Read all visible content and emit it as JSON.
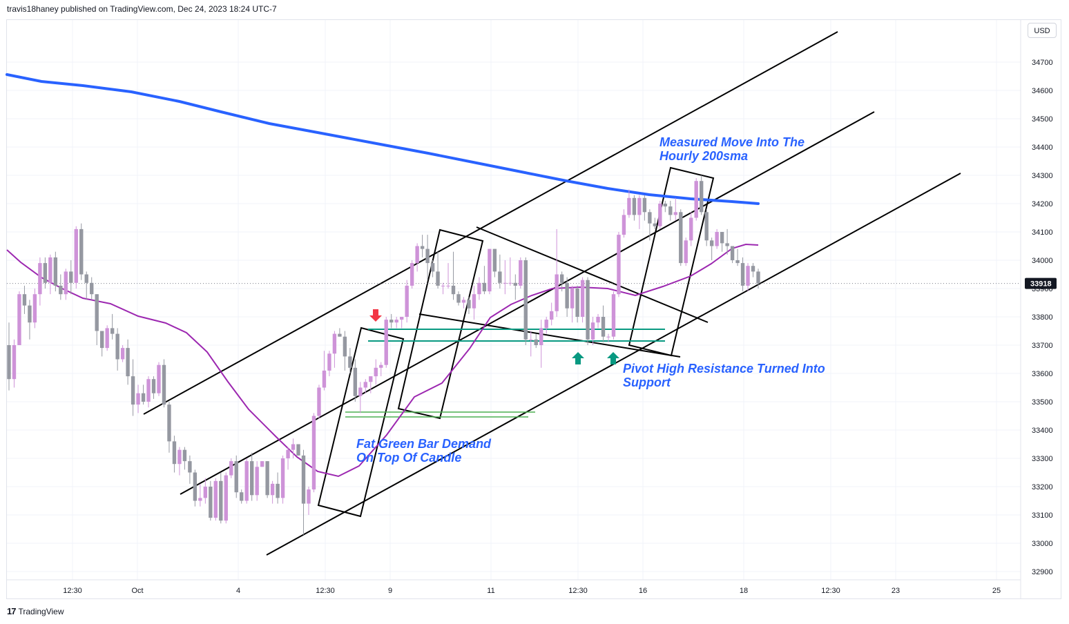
{
  "header": {
    "text": "travis18haney published on TradingView.com, Dec 24, 2023 18:24 UTC-7"
  },
  "currency_label": "USD",
  "footer": {
    "logo": "17",
    "brand": "TradingView"
  },
  "price_label": {
    "value": "33918",
    "color": "#131722"
  },
  "colors": {
    "bull": "#ce93d8",
    "bear": "#9598a1",
    "sma200": "#2962ff",
    "sma_fast": "#9c27b0",
    "channel": "#000000",
    "teal_level": "#089981",
    "green_level": "#4caf50",
    "arrow_down": "#f23645",
    "arrow_up": "#089981",
    "annotation": "#2962ff"
  },
  "chart_data": {
    "type": "candlestick",
    "y_ticks": [
      34700,
      34600,
      34500,
      34400,
      34300,
      34200,
      34100,
      34000,
      33900,
      33800,
      33700,
      33600,
      33500,
      33400,
      33300,
      33200,
      33100,
      33000,
      32900
    ],
    "ylim": [
      32860,
      34900
    ],
    "x_ticks": [
      "12:30",
      "Oct",
      "4",
      "12:30",
      "9",
      "11",
      "12:30",
      "16",
      "18",
      "12:30",
      "23",
      "25"
    ],
    "candles": [
      [
        33700,
        33780,
        33540,
        33580
      ],
      [
        33580,
        33720,
        33550,
        33700
      ],
      [
        33700,
        33890,
        33700,
        33880
      ],
      [
        33880,
        33910,
        33810,
        33840
      ],
      [
        33840,
        33860,
        33720,
        33780
      ],
      [
        33780,
        33900,
        33760,
        33880
      ],
      [
        33880,
        34010,
        33840,
        33990
      ],
      [
        33990,
        34010,
        33900,
        33920
      ],
      [
        33920,
        34020,
        33880,
        34010
      ],
      [
        34010,
        34030,
        33890,
        33910
      ],
      [
        33910,
        33950,
        33860,
        33880
      ],
      [
        33880,
        33970,
        33860,
        33960
      ],
      [
        33960,
        34000,
        33880,
        33920
      ],
      [
        33920,
        34120,
        33900,
        34110
      ],
      [
        34110,
        34130,
        33930,
        33950
      ],
      [
        33950,
        33960,
        33860,
        33920
      ],
      [
        33920,
        33940,
        33860,
        33880
      ],
      [
        33880,
        33880,
        33700,
        33750
      ],
      [
        33750,
        33750,
        33660,
        33690
      ],
      [
        33690,
        33770,
        33680,
        33760
      ],
      [
        33760,
        33810,
        33720,
        33740
      ],
      [
        33740,
        33760,
        33610,
        33650
      ],
      [
        33650,
        33700,
        33640,
        33690
      ],
      [
        33690,
        33720,
        33560,
        33590
      ],
      [
        33590,
        33650,
        33450,
        33490
      ],
      [
        33490,
        33560,
        33460,
        33530
      ],
      [
        33530,
        33560,
        33490,
        33500
      ],
      [
        33500,
        33590,
        33480,
        33580
      ],
      [
        33580,
        33590,
        33510,
        33530
      ],
      [
        33530,
        33640,
        33520,
        33630
      ],
      [
        33630,
        33650,
        33480,
        33490
      ],
      [
        33490,
        33500,
        33320,
        33360
      ],
      [
        33360,
        33380,
        33250,
        33280
      ],
      [
        33280,
        33340,
        33240,
        33330
      ],
      [
        33330,
        33340,
        33260,
        33290
      ],
      [
        33290,
        33310,
        33210,
        33250
      ],
      [
        33250,
        33260,
        33130,
        33150
      ],
      [
        33150,
        33210,
        33130,
        33160
      ],
      [
        33160,
        33230,
        33140,
        33200
      ],
      [
        33200,
        33220,
        33080,
        33090
      ],
      [
        33090,
        33230,
        33080,
        33220
      ],
      [
        33220,
        33250,
        33070,
        33080
      ],
      [
        33080,
        33250,
        33070,
        33240
      ],
      [
        33240,
        33300,
        33230,
        33290
      ],
      [
        33290,
        33310,
        33160,
        33180
      ],
      [
        33180,
        33190,
        33140,
        33150
      ],
      [
        33150,
        33300,
        33140,
        33290
      ],
      [
        33290,
        33320,
        33150,
        33170
      ],
      [
        33170,
        33290,
        33150,
        33270
      ],
      [
        33270,
        33290,
        33270,
        33290
      ],
      [
        33290,
        33290,
        33160,
        33170
      ],
      [
        33170,
        33220,
        33140,
        33210
      ],
      [
        33210,
        33250,
        33140,
        33160
      ],
      [
        33160,
        33310,
        33140,
        33300
      ],
      [
        33300,
        33340,
        33260,
        33330
      ],
      [
        33330,
        33370,
        33300,
        33350
      ],
      [
        33350,
        33350,
        33310,
        33310
      ],
      [
        33310,
        33330,
        33030,
        33140
      ],
      [
        33140,
        33200,
        33100,
        33190
      ],
      [
        33190,
        33460,
        33180,
        33450
      ],
      [
        33450,
        33560,
        33440,
        33550
      ],
      [
        33550,
        33680,
        33540,
        33610
      ],
      [
        33610,
        33680,
        33590,
        33670
      ],
      [
        33670,
        33750,
        33620,
        33740
      ],
      [
        33740,
        33760,
        33730,
        33730
      ],
      [
        33730,
        33750,
        33610,
        33660
      ],
      [
        33660,
        33690,
        33600,
        33620
      ],
      [
        33620,
        33650,
        33500,
        33520
      ],
      [
        33520,
        33570,
        33460,
        33550
      ],
      [
        33550,
        33580,
        33530,
        33570
      ],
      [
        33570,
        33590,
        33530,
        33590
      ],
      [
        33590,
        33650,
        33560,
        33620
      ],
      [
        33620,
        33640,
        33590,
        33630
      ],
      [
        33630,
        33800,
        33620,
        33790
      ],
      [
        33790,
        33810,
        33760,
        33780
      ],
      [
        33780,
        33800,
        33760,
        33790
      ],
      [
        33790,
        33800,
        33760,
        33800
      ],
      [
        33800,
        33930,
        33780,
        33910
      ],
      [
        33910,
        34000,
        33900,
        33990
      ],
      [
        33990,
        34060,
        33960,
        34050
      ],
      [
        34050,
        34090,
        34010,
        34040
      ],
      [
        34040,
        34090,
        33930,
        33990
      ],
      [
        33990,
        34000,
        33940,
        33960
      ],
      [
        33960,
        34030,
        33900,
        33910
      ],
      [
        33910,
        33920,
        33880,
        33910
      ],
      [
        33910,
        33990,
        33900,
        33910
      ],
      [
        33910,
        34030,
        33860,
        33880
      ],
      [
        33880,
        33890,
        33840,
        33850
      ],
      [
        33850,
        33870,
        33830,
        33860
      ],
      [
        33860,
        33870,
        33810,
        33830
      ],
      [
        33830,
        33910,
        33790,
        33880
      ],
      [
        33880,
        33940,
        33860,
        33920
      ],
      [
        33920,
        33980,
        33880,
        33890
      ],
      [
        33890,
        34040,
        33880,
        34040
      ],
      [
        34040,
        34040,
        33940,
        33960
      ],
      [
        33960,
        34020,
        33900,
        33920
      ],
      [
        33920,
        34000,
        33880,
        33920
      ],
      [
        33920,
        34010,
        33910,
        33920
      ],
      [
        33920,
        33950,
        33860,
        33910
      ],
      [
        33910,
        34010,
        33900,
        34000
      ],
      [
        34000,
        34010,
        33700,
        33720
      ],
      [
        33720,
        33750,
        33660,
        33720
      ],
      [
        33720,
        33740,
        33690,
        33700
      ],
      [
        33700,
        33790,
        33620,
        33760
      ],
      [
        33760,
        33800,
        33740,
        33790
      ],
      [
        33790,
        33850,
        33770,
        33820
      ],
      [
        33820,
        34110,
        33800,
        33950
      ],
      [
        33950,
        33960,
        33890,
        33920
      ],
      [
        33920,
        33940,
        33800,
        33830
      ],
      [
        33830,
        33910,
        33780,
        33900
      ],
      [
        33900,
        33910,
        33780,
        33800
      ],
      [
        33800,
        33940,
        33780,
        33930
      ],
      [
        33930,
        33940,
        33700,
        33720
      ],
      [
        33720,
        33800,
        33700,
        33780
      ],
      [
        33780,
        33810,
        33760,
        33800
      ],
      [
        33800,
        33840,
        33710,
        33730
      ],
      [
        33730,
        33740,
        33710,
        33730
      ],
      [
        33730,
        33890,
        33720,
        33880
      ],
      [
        33880,
        34100,
        33870,
        34090
      ],
      [
        34090,
        34180,
        34080,
        34160
      ],
      [
        34160,
        34250,
        34150,
        34220
      ],
      [
        34220,
        34230,
        34140,
        34160
      ],
      [
        34160,
        34230,
        34110,
        34220
      ],
      [
        34220,
        34230,
        34140,
        34170
      ],
      [
        34170,
        34180,
        34070,
        34130
      ],
      [
        34130,
        34150,
        34110,
        34120
      ],
      [
        34120,
        34210,
        34110,
        34200
      ],
      [
        34200,
        34210,
        34170,
        34190
      ],
      [
        34190,
        34210,
        34140,
        34160
      ],
      [
        34160,
        34220,
        34140,
        34170
      ],
      [
        34170,
        34180,
        33980,
        33990
      ],
      [
        33990,
        34080,
        33980,
        34070
      ],
      [
        34070,
        34170,
        34050,
        34150
      ],
      [
        34150,
        34290,
        34140,
        34280
      ],
      [
        34280,
        34300,
        34160,
        34170
      ],
      [
        34170,
        34180,
        34050,
        34070
      ],
      [
        34070,
        34080,
        34000,
        34050
      ],
      [
        34050,
        34110,
        34040,
        34100
      ],
      [
        34100,
        34100,
        34030,
        34060
      ],
      [
        34060,
        34110,
        34020,
        34050
      ],
      [
        34050,
        34050,
        33990,
        34000
      ],
      [
        34000,
        34040,
        33980,
        33990
      ],
      [
        33990,
        34010,
        33890,
        33910
      ],
      [
        33910,
        33990,
        33890,
        33980
      ],
      [
        33980,
        33990,
        33940,
        33960
      ],
      [
        33960,
        33970,
        33900,
        33918
      ]
    ],
    "series": [
      {
        "name": "200sma",
        "points": [
          [
            10,
            108
          ],
          [
            60,
            118
          ],
          [
            120,
            124
          ],
          [
            190,
            133
          ],
          [
            260,
            147
          ],
          [
            320,
            162
          ],
          [
            390,
            179
          ],
          [
            460,
            192
          ],
          [
            540,
            207
          ],
          [
            620,
            222
          ],
          [
            700,
            238
          ],
          [
            760,
            250
          ],
          [
            820,
            262
          ],
          [
            880,
            273
          ],
          [
            940,
            282
          ],
          [
            1000,
            288
          ],
          [
            1060,
            292
          ],
          [
            1098,
            295
          ]
        ]
      },
      {
        "name": "fast_ma",
        "points": [
          [
            10,
            362
          ],
          [
            30,
            380
          ],
          [
            60,
            402
          ],
          [
            90,
            418
          ],
          [
            120,
            432
          ],
          [
            160,
            440
          ],
          [
            200,
            458
          ],
          [
            240,
            468
          ],
          [
            270,
            482
          ],
          [
            300,
            510
          ],
          [
            330,
            553
          ],
          [
            360,
            593
          ],
          [
            400,
            633
          ],
          [
            430,
            662
          ],
          [
            460,
            683
          ],
          [
            490,
            690
          ],
          [
            520,
            675
          ],
          [
            560,
            630
          ],
          [
            600,
            575
          ],
          [
            640,
            555
          ],
          [
            680,
            505
          ],
          [
            710,
            460
          ],
          [
            740,
            441
          ],
          [
            770,
            428
          ],
          [
            800,
            418
          ],
          [
            840,
            416
          ],
          [
            880,
            418
          ],
          [
            920,
            428
          ],
          [
            960,
            415
          ],
          [
            1000,
            400
          ],
          [
            1030,
            382
          ],
          [
            1060,
            360
          ],
          [
            1080,
            354
          ],
          [
            1098,
            355
          ]
        ]
      }
    ],
    "annotations": [
      {
        "lines": [
          "Measured Move Into The",
          "Hourly 200sma"
        ]
      },
      {
        "lines": [
          "Pivot High Resistance Turned Into",
          "Support"
        ]
      },
      {
        "lines": [
          "Fat Green Bar Demand",
          "On Top Of Candle"
        ]
      }
    ]
  }
}
